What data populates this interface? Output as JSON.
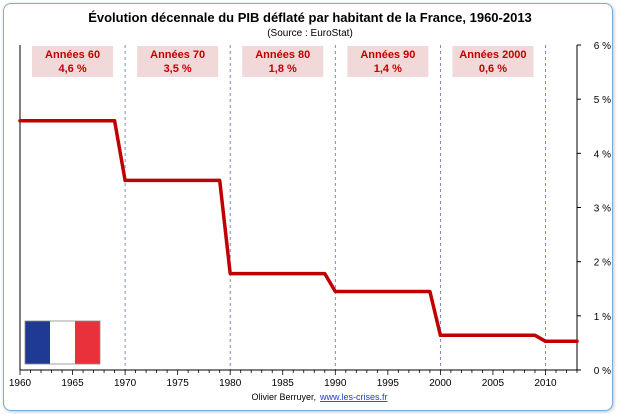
{
  "chart_data": {
    "type": "line",
    "title": "Évolution décennale du PIB déflaté par habitant de la France, 1960-2013",
    "subtitle": "(Source : EuroStat)",
    "xlabel": "",
    "ylabel": "",
    "xlim": [
      1960,
      2013
    ],
    "ylim": [
      0,
      6
    ],
    "x_ticks": [
      "1960",
      "1965",
      "1970",
      "1975",
      "1980",
      "1985",
      "1990",
      "1995",
      "2000",
      "2005",
      "2010"
    ],
    "y_ticks": [
      "0 %",
      "1 %",
      "2 %",
      "3 %",
      "4 %",
      "5 %",
      "6 %"
    ],
    "grid": "vertical dashed at decade boundaries",
    "series": [
      {
        "color": "#c00000",
        "points": [
          [
            1960,
            4.6
          ],
          [
            1969,
            4.6
          ],
          [
            1970,
            3.5
          ],
          [
            1979,
            3.5
          ],
          [
            1980,
            1.78
          ],
          [
            1989,
            1.78
          ],
          [
            1990,
            1.45
          ],
          [
            1999,
            1.45
          ],
          [
            2000,
            0.64
          ],
          [
            2009,
            0.64
          ],
          [
            2010,
            0.53
          ],
          [
            2013,
            0.53
          ]
        ]
      }
    ],
    "decades": [
      {
        "label": "Années 60",
        "rate": "4,6 %"
      },
      {
        "label": "Années 70",
        "rate": "3,5 %"
      },
      {
        "label": "Années 80",
        "rate": "1,8 %"
      },
      {
        "label": "Années 90",
        "rate": "1,4 %"
      },
      {
        "label": "Années 2000",
        "rate": "0,6 %"
      }
    ],
    "decade_boundaries": [
      1970,
      1980,
      1990,
      2000,
      2010
    ]
  },
  "footer": {
    "author": "Olivier Berruyer,",
    "link": "www.les-crises.fr"
  },
  "flag": {
    "name": "france-flag",
    "colors": [
      "#1f3a93",
      "#ffffff",
      "#e8313b"
    ]
  }
}
